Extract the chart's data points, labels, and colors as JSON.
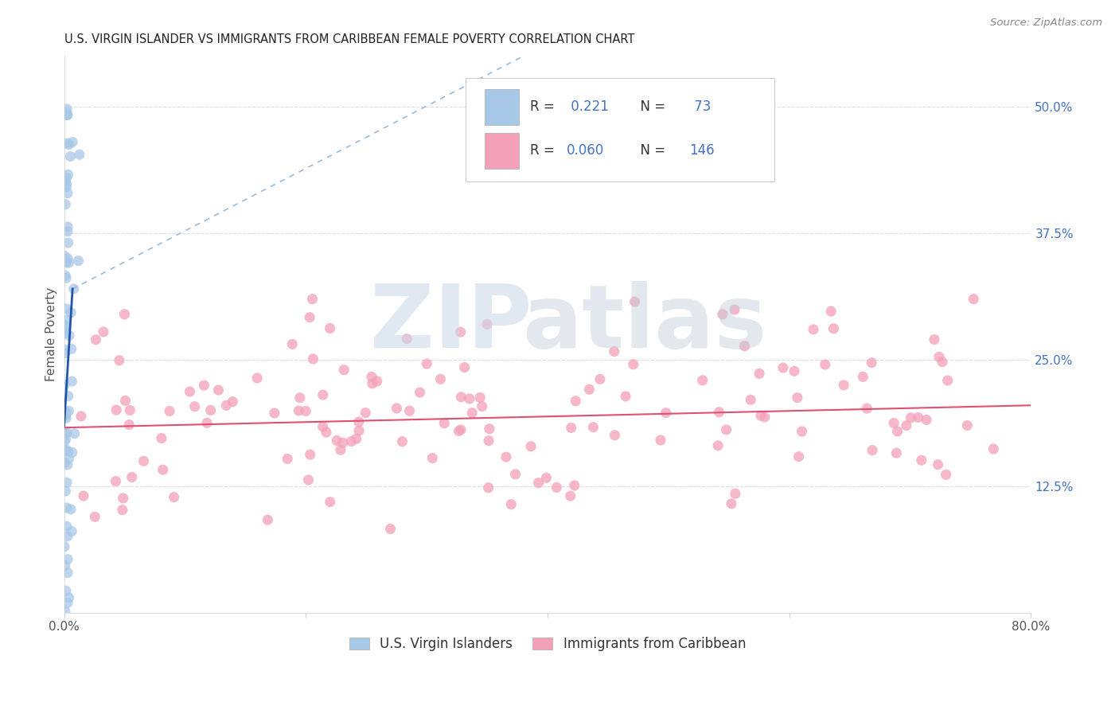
{
  "title": "U.S. VIRGIN ISLANDER VS IMMIGRANTS FROM CARIBBEAN FEMALE POVERTY CORRELATION CHART",
  "source": "Source: ZipAtlas.com",
  "ylabel": "Female Poverty",
  "right_yticks": [
    "50.0%",
    "37.5%",
    "25.0%",
    "12.5%"
  ],
  "right_ytick_vals": [
    0.5,
    0.375,
    0.25,
    0.125
  ],
  "xlim": [
    0.0,
    0.8
  ],
  "ylim": [
    0.0,
    0.55
  ],
  "blue_color": "#a8c8e8",
  "blue_line_color": "#2255aa",
  "blue_dash_color": "#99bbdd",
  "pink_color": "#f4a0b8",
  "pink_line_color": "#e05070",
  "legend_label1": "U.S. Virgin Islanders",
  "legend_label2": "Immigrants from Caribbean",
  "blue_R": "0.221",
  "blue_N": "73",
  "pink_R": "0.060",
  "pink_N": "146"
}
